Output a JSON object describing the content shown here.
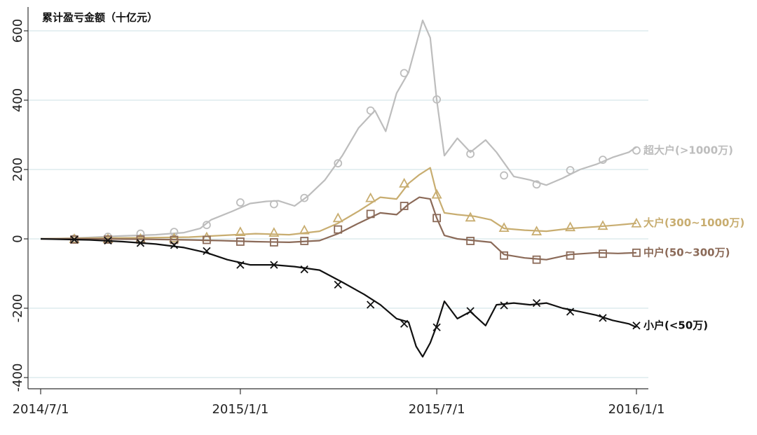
{
  "chart_data": {
    "type": "line",
    "title": "累计盈亏金额（十亿元）",
    "xlabel": "",
    "ylabel": "",
    "ylim": [
      -400,
      650
    ],
    "xlim": [
      "2014-07-01",
      "2016-01-05"
    ],
    "grid": true,
    "x_ticks": [
      "2014-07-01",
      "2015-01-01",
      "2015-07-01",
      "2016-01-01"
    ],
    "x_tick_labels": [
      "2014/7/1",
      "2015/1/1",
      "2015/7/1",
      "2016/1/1"
    ],
    "y_ticks": [
      -400,
      -200,
      0,
      200,
      400,
      600
    ],
    "y_tick_labels": [
      "-400",
      "-200",
      "0",
      "200",
      "400",
      "600"
    ],
    "series": [
      {
        "name": "超大户(>1000万)",
        "color": "#bdbdbd",
        "marker": "circle",
        "x": [
          "2014-07-01",
          "2014-07-20",
          "2014-08-15",
          "2014-09-10",
          "2014-10-15",
          "2014-11-10",
          "2014-11-25",
          "2014-12-05",
          "2014-12-25",
          "2015-01-10",
          "2015-01-25",
          "2015-02-05",
          "2015-02-20",
          "2015-03-05",
          "2015-03-20",
          "2015-04-05",
          "2015-04-20",
          "2015-05-05",
          "2015-05-15",
          "2015-05-25",
          "2015-06-05",
          "2015-06-12",
          "2015-06-18",
          "2015-06-25",
          "2015-07-01",
          "2015-07-08",
          "2015-07-20",
          "2015-08-01",
          "2015-08-15",
          "2015-08-25",
          "2015-09-10",
          "2015-09-25",
          "2015-10-10",
          "2015-10-25",
          "2015-11-10",
          "2015-11-25",
          "2015-12-10",
          "2015-12-25",
          "2016-01-01"
        ],
        "y": [
          0,
          1,
          4,
          8,
          12,
          18,
          30,
          55,
          80,
          102,
          108,
          110,
          95,
          125,
          170,
          240,
          320,
          370,
          310,
          420,
          480,
          560,
          630,
          580,
          400,
          240,
          290,
          250,
          285,
          250,
          180,
          170,
          155,
          175,
          200,
          215,
          235,
          250,
          265
        ],
        "markers_x": [
          "2014-08-01",
          "2014-09-01",
          "2014-10-01",
          "2014-11-01",
          "2014-12-01",
          "2015-01-01",
          "2015-02-01",
          "2015-03-01",
          "2015-04-01",
          "2015-05-01",
          "2015-06-01",
          "2015-07-01",
          "2015-08-01",
          "2015-09-01",
          "2015-10-01",
          "2015-11-01",
          "2015-12-01",
          "2016-01-01"
        ],
        "markers_y": [
          1,
          6,
          15,
          20,
          40,
          105,
          100,
          118,
          218,
          370,
          478,
          402,
          245,
          183,
          157,
          198,
          228,
          255
        ]
      },
      {
        "name": "大户(300~1000万)",
        "color": "#c8ad70",
        "marker": "triangle",
        "x": [
          "2014-07-01",
          "2014-08-15",
          "2014-10-01",
          "2014-11-15",
          "2014-12-15",
          "2015-01-15",
          "2015-02-15",
          "2015-03-15",
          "2015-04-01",
          "2015-04-20",
          "2015-05-10",
          "2015-05-25",
          "2015-06-05",
          "2015-06-15",
          "2015-06-25",
          "2015-07-01",
          "2015-07-08",
          "2015-07-20",
          "2015-08-05",
          "2015-08-20",
          "2015-09-01",
          "2015-09-20",
          "2015-10-10",
          "2015-11-01",
          "2015-11-25",
          "2015-12-15",
          "2016-01-01"
        ],
        "y": [
          0,
          2,
          3,
          5,
          10,
          15,
          12,
          22,
          45,
          80,
          120,
          115,
          160,
          185,
          205,
          130,
          75,
          70,
          65,
          55,
          30,
          25,
          22,
          30,
          35,
          40,
          45
        ],
        "markers_x": [
          "2014-08-01",
          "2014-09-01",
          "2014-10-01",
          "2014-11-01",
          "2014-12-01",
          "2015-01-01",
          "2015-02-01",
          "2015-03-01",
          "2015-04-01",
          "2015-05-01",
          "2015-06-01",
          "2015-07-01",
          "2015-08-01",
          "2015-09-01",
          "2015-10-01",
          "2015-11-01",
          "2015-12-01",
          "2016-01-01"
        ],
        "markers_y": [
          0,
          0,
          1,
          2,
          5,
          20,
          18,
          25,
          60,
          118,
          160,
          128,
          62,
          32,
          22,
          34,
          38,
          45
        ]
      },
      {
        "name": "中户(50~300万)",
        "color": "#8b6a58",
        "marker": "square",
        "x": [
          "2014-07-01",
          "2014-08-15",
          "2014-10-01",
          "2014-11-15",
          "2014-12-15",
          "2015-01-15",
          "2015-02-15",
          "2015-03-15",
          "2015-04-01",
          "2015-04-20",
          "2015-05-10",
          "2015-05-25",
          "2015-06-05",
          "2015-06-15",
          "2015-06-25",
          "2015-07-01",
          "2015-07-08",
          "2015-07-20",
          "2015-08-05",
          "2015-08-20",
          "2015-09-01",
          "2015-09-20",
          "2015-10-10",
          "2015-11-01",
          "2015-11-25",
          "2015-12-15",
          "2016-01-01"
        ],
        "y": [
          0,
          0,
          -1,
          -3,
          -5,
          -8,
          -10,
          -5,
          15,
          45,
          75,
          70,
          100,
          120,
          115,
          60,
          10,
          0,
          -5,
          -10,
          -45,
          -55,
          -60,
          -45,
          -40,
          -42,
          -40
        ],
        "markers_x": [
          "2014-08-01",
          "2014-09-01",
          "2014-10-01",
          "2014-11-01",
          "2014-12-01",
          "2015-01-01",
          "2015-02-01",
          "2015-03-01",
          "2015-04-01",
          "2015-05-01",
          "2015-06-01",
          "2015-07-01",
          "2015-08-01",
          "2015-09-01",
          "2015-10-01",
          "2015-11-01",
          "2015-12-01",
          "2016-01-01"
        ],
        "markers_y": [
          -2,
          -2,
          -2,
          -3,
          -3,
          -8,
          -10,
          -6,
          27,
          72,
          95,
          60,
          -6,
          -48,
          -60,
          -48,
          -43,
          -40
        ]
      },
      {
        "name": "小户(<50万)",
        "color": "#111111",
        "marker": "x",
        "x": [
          "2014-07-01",
          "2014-08-15",
          "2014-09-15",
          "2014-10-15",
          "2014-11-10",
          "2014-12-01",
          "2014-12-20",
          "2015-01-10",
          "2015-02-01",
          "2015-02-20",
          "2015-03-15",
          "2015-04-05",
          "2015-04-25",
          "2015-05-10",
          "2015-05-25",
          "2015-06-05",
          "2015-06-12",
          "2015-06-18",
          "2015-06-25",
          "2015-07-01",
          "2015-07-08",
          "2015-07-20",
          "2015-08-01",
          "2015-08-15",
          "2015-08-25",
          "2015-09-10",
          "2015-09-25",
          "2015-10-10",
          "2015-10-25",
          "2015-11-10",
          "2015-11-25",
          "2015-12-10",
          "2015-12-25",
          "2016-01-01"
        ],
        "y": [
          0,
          -3,
          -8,
          -15,
          -25,
          -40,
          -60,
          -75,
          -75,
          -80,
          -90,
          -125,
          -160,
          -190,
          -230,
          -240,
          -310,
          -340,
          -300,
          -250,
          -180,
          -230,
          -210,
          -250,
          -190,
          -185,
          -190,
          -185,
          -200,
          -210,
          -220,
          -235,
          -245,
          -255
        ],
        "markers_x": [
          "2014-08-01",
          "2014-09-01",
          "2014-10-01",
          "2014-11-01",
          "2014-12-01",
          "2015-01-01",
          "2015-02-01",
          "2015-03-01",
          "2015-04-01",
          "2015-05-01",
          "2015-06-01",
          "2015-07-01",
          "2015-08-01",
          "2015-09-01",
          "2015-10-01",
          "2015-11-01",
          "2015-12-01",
          "2016-01-01"
        ],
        "markers_y": [
          -2,
          -5,
          -12,
          -18,
          -35,
          -75,
          -75,
          -88,
          -132,
          -190,
          -245,
          -255,
          -208,
          -192,
          -185,
          -210,
          -228,
          -250
        ]
      }
    ],
    "legend": "inline-right"
  }
}
